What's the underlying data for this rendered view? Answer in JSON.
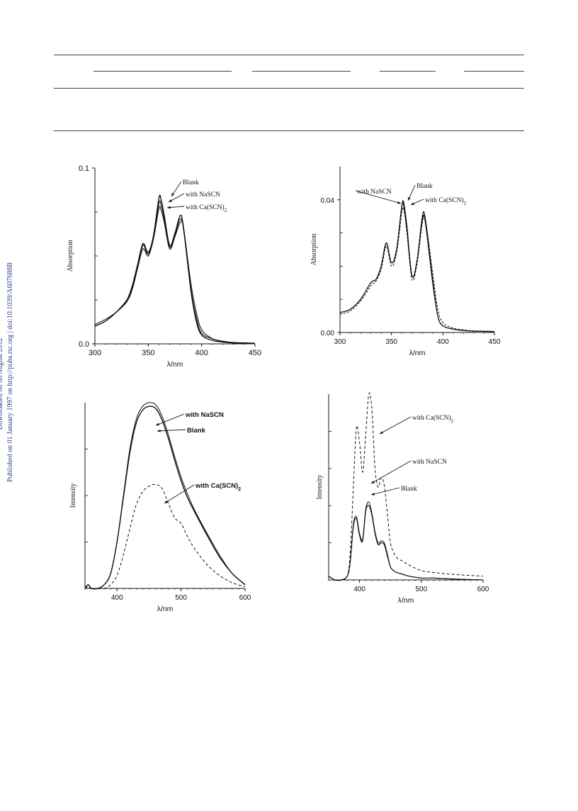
{
  "watermark": {
    "line1": "Downloaded on 08 August 2012",
    "line2": "Published on 01 January 1997 on http://pubs.rsc.org | doi:10.1039/A607688B"
  },
  "chart_data": [
    {
      "type": "line",
      "title": "",
      "xlabel": "λ/nm",
      "ylabel": "Absorption",
      "xlim": [
        300,
        450
      ],
      "ylim": [
        0,
        0.1
      ],
      "xticks": [
        "300",
        "350",
        "400",
        "450"
      ],
      "yticks": [
        "0.0",
        "0.1"
      ],
      "x": [
        300,
        310,
        320,
        330,
        335,
        340,
        345,
        350,
        355,
        360,
        362,
        365,
        370,
        375,
        380,
        383,
        390,
        395,
        400,
        410,
        420,
        430,
        450
      ],
      "series": [
        {
          "name": "Blank",
          "values": [
            0.01,
            0.013,
            0.018,
            0.025,
            0.033,
            0.045,
            0.057,
            0.052,
            0.062,
            0.083,
            0.082,
            0.073,
            0.056,
            0.063,
            0.073,
            0.066,
            0.03,
            0.013,
            0.005,
            0.002,
            0.001,
            0.0005,
            0.0003
          ]
        },
        {
          "name": "with NaSCN",
          "values": [
            0.01,
            0.013,
            0.018,
            0.025,
            0.032,
            0.044,
            0.056,
            0.051,
            0.061,
            0.08,
            0.079,
            0.071,
            0.055,
            0.062,
            0.071,
            0.065,
            0.031,
            0.015,
            0.006,
            0.003,
            0.001,
            0.0006,
            0.0003
          ]
        },
        {
          "name": "with Ca(SCN)2",
          "values": [
            0.011,
            0.014,
            0.018,
            0.024,
            0.031,
            0.043,
            0.054,
            0.05,
            0.06,
            0.077,
            0.076,
            0.069,
            0.054,
            0.061,
            0.069,
            0.066,
            0.034,
            0.018,
            0.008,
            0.003,
            0.0015,
            0.0008,
            0.0004
          ]
        }
      ],
      "annotations": [
        "Blank",
        "with NaSCN",
        "with Ca(SCN)2"
      ]
    },
    {
      "type": "line",
      "title": "",
      "xlabel": "λ/nm",
      "ylabel": "Absorption",
      "xlim": [
        300,
        450
      ],
      "ylim": [
        0,
        0.05
      ],
      "xticks": [
        "300",
        "350",
        "400",
        "450"
      ],
      "yticks": [
        "0.00",
        "0.04"
      ],
      "x": [
        300,
        310,
        320,
        330,
        335,
        340,
        345,
        350,
        355,
        360,
        362,
        365,
        370,
        375,
        380,
        383,
        390,
        395,
        400,
        410,
        420,
        430,
        450
      ],
      "series": [
        {
          "name": "Blank",
          "values": [
            0.006,
            0.007,
            0.01,
            0.015,
            0.016,
            0.02,
            0.027,
            0.021,
            0.025,
            0.038,
            0.039,
            0.032,
            0.017,
            0.022,
            0.035,
            0.034,
            0.016,
            0.005,
            0.002,
            0.001,
            0.0006,
            0.0004,
            0.0003
          ]
        },
        {
          "name": "with NaSCN",
          "values": [
            0.006,
            0.007,
            0.01,
            0.015,
            0.016,
            0.02,
            0.027,
            0.021,
            0.025,
            0.038,
            0.038,
            0.031,
            0.017,
            0.022,
            0.034,
            0.033,
            0.015,
            0.005,
            0.002,
            0.001,
            0.0006,
            0.0004,
            0.0003
          ]
        },
        {
          "name": "with Ca(SCN)2",
          "values": [
            0.0055,
            0.0065,
            0.0095,
            0.014,
            0.0155,
            0.019,
            0.026,
            0.02,
            0.024,
            0.036,
            0.037,
            0.03,
            0.016,
            0.021,
            0.033,
            0.034,
            0.018,
            0.007,
            0.003,
            0.0013,
            0.0008,
            0.0005,
            0.0003
          ]
        }
      ],
      "annotations": [
        "with NaSCN",
        "Blank",
        "with Ca(SCN)2"
      ]
    },
    {
      "type": "line",
      "title": "",
      "xlabel": "λ/nm",
      "ylabel": "Intensity",
      "xlim": [
        350,
        600
      ],
      "ylim": [
        0,
        1
      ],
      "xticks": [
        "400",
        "500",
        "600"
      ],
      "x": [
        350,
        355,
        360,
        370,
        380,
        390,
        400,
        410,
        420,
        430,
        440,
        450,
        460,
        470,
        480,
        490,
        500,
        510,
        520,
        540,
        560,
        580,
        600
      ],
      "series": [
        {
          "name": "with NaSCN",
          "values": [
            0.0,
            0.02,
            0.0,
            0.0,
            0.02,
            0.08,
            0.25,
            0.5,
            0.75,
            0.91,
            0.98,
            1.0,
            0.99,
            0.93,
            0.83,
            0.71,
            0.6,
            0.51,
            0.43,
            0.3,
            0.18,
            0.08,
            0.02
          ]
        },
        {
          "name": "Blank",
          "values": [
            0.0,
            0.02,
            0.0,
            0.0,
            0.02,
            0.08,
            0.25,
            0.49,
            0.73,
            0.89,
            0.96,
            0.98,
            0.97,
            0.91,
            0.81,
            0.69,
            0.58,
            0.49,
            0.42,
            0.29,
            0.17,
            0.08,
            0.02
          ]
        },
        {
          "name": "with Ca(SCN)2",
          "values": [
            0.0,
            0.01,
            0.0,
            0.0,
            0.0,
            0.02,
            0.07,
            0.18,
            0.32,
            0.45,
            0.52,
            0.55,
            0.56,
            0.54,
            0.46,
            0.38,
            0.35,
            0.28,
            0.22,
            0.13,
            0.07,
            0.03,
            0.01
          ]
        }
      ],
      "annotations": [
        "with NaSCN",
        "Blank",
        "with Ca(SCN)2"
      ]
    },
    {
      "type": "line",
      "title": "",
      "xlabel": "λ/nm",
      "ylabel": "Intensity",
      "xlim": [
        350,
        600
      ],
      "ylim": [
        0,
        1
      ],
      "xticks": [
        "400",
        "500",
        "600"
      ],
      "x": [
        350,
        360,
        370,
        380,
        385,
        390,
        395,
        400,
        405,
        410,
        415,
        420,
        425,
        430,
        435,
        440,
        445,
        450,
        455,
        460,
        470,
        480,
        500,
        520,
        550,
        600
      ],
      "series": [
        {
          "name": "with Ca(SCN)2",
          "values": [
            0.02,
            0.0,
            0.0,
            0.02,
            0.15,
            0.5,
            0.82,
            0.74,
            0.58,
            0.78,
            1.0,
            0.92,
            0.6,
            0.5,
            0.55,
            0.51,
            0.36,
            0.2,
            0.15,
            0.12,
            0.1,
            0.08,
            0.05,
            0.04,
            0.03,
            0.02
          ]
        },
        {
          "name": "with NaSCN",
          "values": [
            0.02,
            0.0,
            0.0,
            0.02,
            0.1,
            0.3,
            0.34,
            0.25,
            0.22,
            0.38,
            0.42,
            0.36,
            0.26,
            0.2,
            0.21,
            0.2,
            0.14,
            0.07,
            0.05,
            0.04,
            0.03,
            0.02,
            0.01,
            0.01,
            0.005,
            0.0
          ]
        },
        {
          "name": "Blank",
          "values": [
            0.02,
            0.0,
            0.0,
            0.02,
            0.1,
            0.29,
            0.33,
            0.24,
            0.21,
            0.37,
            0.4,
            0.35,
            0.25,
            0.19,
            0.2,
            0.19,
            0.13,
            0.07,
            0.05,
            0.04,
            0.03,
            0.02,
            0.01,
            0.01,
            0.005,
            0.0
          ]
        }
      ],
      "annotations": [
        "with Ca(SCN)2",
        "with NaSCN",
        "Blank"
      ]
    }
  ]
}
